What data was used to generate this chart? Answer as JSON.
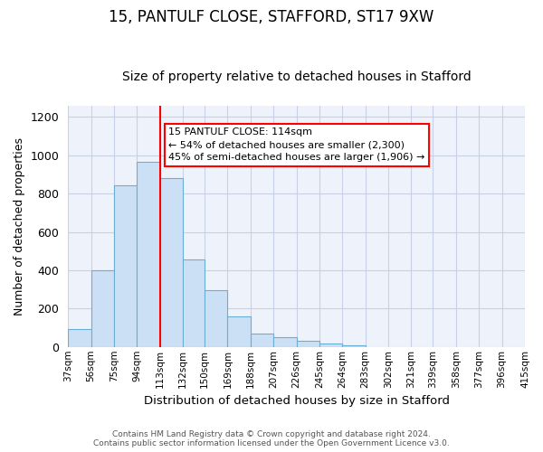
{
  "title": "15, PANTULF CLOSE, STAFFORD, ST17 9XW",
  "subtitle": "Size of property relative to detached houses in Stafford",
  "xlabel": "Distribution of detached houses by size in Stafford",
  "ylabel": "Number of detached properties",
  "footer_line1": "Contains HM Land Registry data © Crown copyright and database right 2024.",
  "footer_line2": "Contains public sector information licensed under the Open Government Licence v3.0.",
  "bin_labels": [
    "37sqm",
    "56sqm",
    "75sqm",
    "94sqm",
    "113sqm",
    "132sqm",
    "150sqm",
    "169sqm",
    "188sqm",
    "207sqm",
    "226sqm",
    "245sqm",
    "264sqm",
    "283sqm",
    "302sqm",
    "321sqm",
    "339sqm",
    "358sqm",
    "377sqm",
    "396sqm",
    "415sqm"
  ],
  "bin_edges": [
    37,
    56,
    75,
    94,
    113,
    132,
    150,
    169,
    188,
    207,
    226,
    245,
    264,
    283,
    302,
    321,
    339,
    358,
    377,
    396,
    415
  ],
  "bar_heights": [
    95,
    400,
    845,
    965,
    880,
    455,
    295,
    160,
    70,
    50,
    32,
    18,
    10,
    0,
    0,
    0,
    0,
    0,
    0,
    0
  ],
  "bar_color": "#cce0f5",
  "bar_edge_color": "#6aaed6",
  "red_line_x": 113,
  "annotation_line1": "15 PANTULF CLOSE: 114sqm",
  "annotation_line2": "← 54% of detached houses are smaller (2,300)",
  "annotation_line3": "45% of semi-detached houses are larger (1,906) →",
  "ylim": [
    0,
    1260
  ],
  "yticks": [
    0,
    200,
    400,
    600,
    800,
    1000,
    1200
  ],
  "bg_color": "#ffffff",
  "plot_bg_color": "#eef2fb",
  "grid_color": "#c8d0e8",
  "title_fontsize": 12,
  "subtitle_fontsize": 10
}
